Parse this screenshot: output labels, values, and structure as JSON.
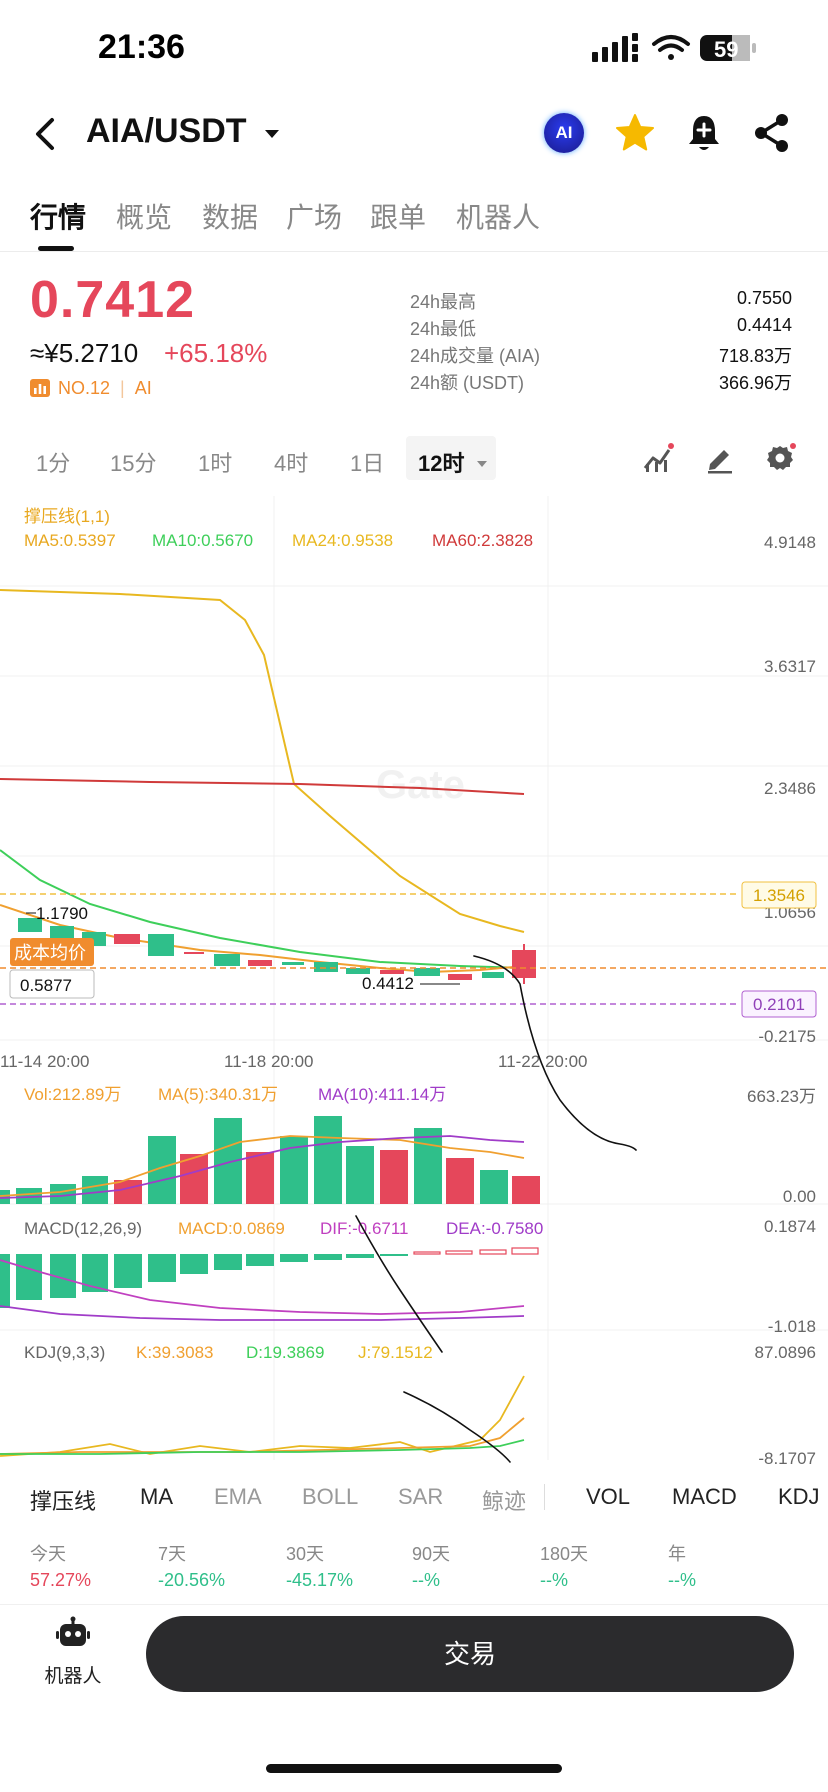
{
  "status_bar": {
    "time": "21:36",
    "battery": "59"
  },
  "header": {
    "pair": "AIA/USDT",
    "ai_badge": "AI"
  },
  "tabs": [
    {
      "label": "行情",
      "active": true
    },
    {
      "label": "概览"
    },
    {
      "label": "数据"
    },
    {
      "label": "广场"
    },
    {
      "label": "跟单"
    },
    {
      "label": "机器人"
    }
  ],
  "price": {
    "last": "0.7412",
    "cny": "≈¥5.2710",
    "change": "+65.18%",
    "rank": "NO.12",
    "tag": "AI",
    "up_color": "#e5475b",
    "down_color": "#2fbf8a"
  },
  "stats": [
    {
      "label": "24h最高",
      "value": "0.7550"
    },
    {
      "label": "24h最低",
      "value": "0.4414"
    },
    {
      "label": "24h成交量 (AIA)",
      "value": "718.83万"
    },
    {
      "label": "24h额 (USDT)",
      "value": "366.96万"
    }
  ],
  "intervals": [
    "1分",
    "15分",
    "1时",
    "4时",
    "1日",
    "12时"
  ],
  "chart": {
    "overlay_title": "撑压线(1,1)",
    "ma": [
      {
        "text": "MA5:0.5397",
        "color": "#f0a030"
      },
      {
        "text": "MA10:0.5670",
        "color": "#3ecf5a"
      },
      {
        "text": "MA24:0.9538",
        "color": "#e8b820"
      },
      {
        "text": "MA60:2.3828",
        "color": "#d03a3a"
      }
    ],
    "price_axis": [
      "4.9148",
      "3.6317",
      "2.3486",
      "1.0656",
      "-0.2175"
    ],
    "resistance": "1.3546",
    "support": "0.2101",
    "high_label": "1.1790",
    "low_label": "0.4412",
    "cost_title": "成本均价",
    "cost_value": "0.5877",
    "time_axis": [
      "11-14 20:00",
      "11-18 20:00",
      "11-22 20:00"
    ],
    "vol": {
      "labels": [
        {
          "text": "Vol:212.89万",
          "color": "#f0a030"
        },
        {
          "text": "MA(5):340.31万",
          "color": "#f0a030"
        },
        {
          "text": "MA(10):411.14万",
          "color": "#a03cc8"
        }
      ],
      "axis": [
        "663.23万",
        "0.00"
      ]
    },
    "macd": {
      "labels": [
        {
          "text": "MACD(12,26,9)",
          "color": "#666"
        },
        {
          "text": "MACD:0.0869",
          "color": "#f0a030"
        },
        {
          "text": "DIF:-0.6711",
          "color": "#c040c0"
        },
        {
          "text": "DEA:-0.7580",
          "color": "#a03cc8"
        }
      ],
      "axis": [
        "0.1874",
        "-1.018"
      ]
    },
    "kdj": {
      "labels": [
        {
          "text": "KDJ(9,3,3)",
          "color": "#666"
        },
        {
          "text": "K:39.3083",
          "color": "#f0a030"
        },
        {
          "text": "D:19.3869",
          "color": "#3ecf5a"
        },
        {
          "text": "J:79.1512",
          "color": "#e8b820"
        }
      ],
      "axis": [
        "87.0896",
        "-8.1707"
      ]
    }
  },
  "indicators": [
    "撑压线",
    "MA",
    "EMA",
    "BOLL",
    "SAR",
    "鲸迹",
    "VOL",
    "MACD",
    "KDJ"
  ],
  "performance": [
    {
      "label": "今天",
      "value": "57.27%"
    },
    {
      "label": "7天",
      "value": "-20.56%"
    },
    {
      "label": "30天",
      "value": "-45.17%"
    },
    {
      "label": "90天",
      "value": "--%"
    },
    {
      "label": "180天",
      "value": "--%"
    },
    {
      "label": "年",
      "value": "--%"
    }
  ],
  "bottom": {
    "robot_label": "机器人",
    "trade_label": "交易"
  }
}
